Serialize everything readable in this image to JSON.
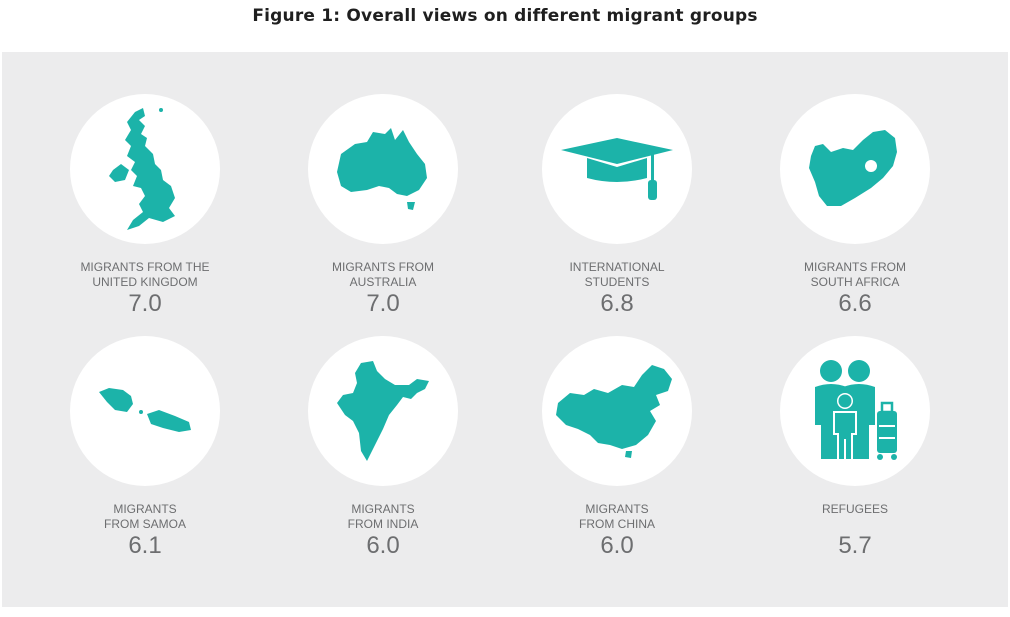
{
  "title": "Figure 1: Overall views on different migrant groups",
  "colors": {
    "accent": "#1cb3a9",
    "panel": "#ececed",
    "text": "#6d6e70",
    "circle": "#ffffff"
  },
  "chart_data": {
    "type": "table",
    "title": "Figure 1: Overall views on different migrant groups",
    "items": [
      {
        "label": "MIGRANTS FROM THE\nUNITED KINGDOM",
        "value": "7.0",
        "icon": "united-kingdom-map-icon"
      },
      {
        "label": "MIGRANTS FROM\nAUSTRALIA",
        "value": "7.0",
        "icon": "australia-map-icon"
      },
      {
        "label": "INTERNATIONAL\nSTUDENTS",
        "value": "6.8",
        "icon": "graduation-cap-icon"
      },
      {
        "label": "MIGRANTS FROM\nSOUTH AFRICA",
        "value": "6.6",
        "icon": "south-africa-map-icon"
      },
      {
        "label": "MIGRANTS\nFROM SAMOA",
        "value": "6.1",
        "icon": "samoa-map-icon"
      },
      {
        "label": "MIGRANTS\nFROM INDIA",
        "value": "6.0",
        "icon": "india-map-icon"
      },
      {
        "label": "MIGRANTS\nFROM CHINA",
        "value": "6.0",
        "icon": "china-map-icon"
      },
      {
        "label": "REFUGEES",
        "value": "5.7",
        "icon": "refugee-family-icon"
      }
    ]
  }
}
